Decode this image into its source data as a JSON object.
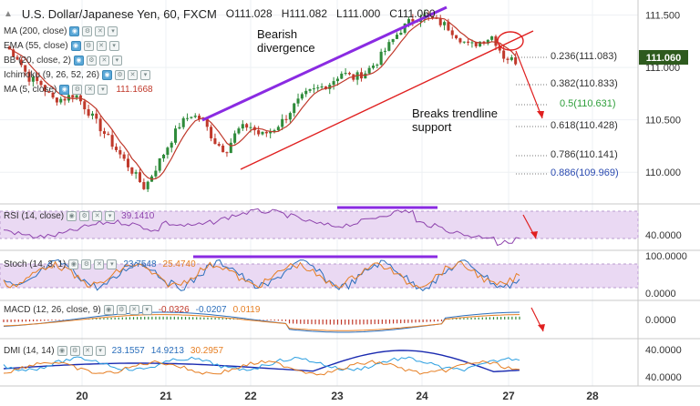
{
  "header": {
    "symbol": "U.S. Dollar/Japanese Yen, 60, FXCM",
    "open": "O111.028",
    "high": "H111.082",
    "low": "L111.000",
    "close": "C111.060"
  },
  "overlays": [
    {
      "label": "MA (200, close)"
    },
    {
      "label": "EMA (55, close)"
    },
    {
      "label": "BB (20, close, 2)"
    },
    {
      "label": "Ichimoku (9, 26, 52, 26)"
    },
    {
      "label": "MA (5, close)",
      "value": "111.1668"
    }
  ],
  "price_axis": {
    "ticks": [
      "111.500",
      "111.000",
      "110.500",
      "110.000"
    ],
    "current": "111.060"
  },
  "annotations": {
    "bearish": "Bearish\ndivergence",
    "breaks": "Breaks trendline\nsupport"
  },
  "fib_levels": [
    {
      "label": "0.236(111.083)",
      "color": "#333333"
    },
    {
      "label": "0.382(110.833)",
      "color": "#333333"
    },
    {
      "label": "0.5(110.631)",
      "color": "#2e9e3a"
    },
    {
      "label": "0.618(110.428)",
      "color": "#333333"
    },
    {
      "label": "0.786(110.141)",
      "color": "#333333"
    },
    {
      "label": "0.886(109.969)",
      "color": "#2a4ab0"
    }
  ],
  "rsi": {
    "label": "RSI (14, close)",
    "value": "39.1410",
    "tick": "40.0000"
  },
  "stoch": {
    "label": "Stoch (14, 3, 1)",
    "k": "23.7548",
    "d": "25.4740",
    "ticks": [
      "100.0000",
      "0.0000"
    ]
  },
  "macd": {
    "label": "MACD (12, 26, close, 9)",
    "hist": "-0.0326",
    "macd": "-0.0207",
    "signal": "0.0119",
    "tick": "0.0000"
  },
  "dmi": {
    "label": "DMI (14, 14)",
    "adx": "23.1557",
    "plus": "14.9213",
    "minus": "30.2957",
    "ticks": [
      "40.0000",
      "40.0000"
    ]
  },
  "time_axis": [
    "20",
    "21",
    "22",
    "23",
    "24",
    "27",
    "28"
  ],
  "colors": {
    "up": "#2e8b3a",
    "down": "#c0392b",
    "ma": "#c0392b",
    "purple": "#8a2be2",
    "trend": "#e02020",
    "panel_fill": "#ead9f3"
  },
  "chart_data": {
    "type": "candlestick",
    "time_labels": [
      "20",
      "21",
      "22",
      "23",
      "24",
      "27",
      "28"
    ],
    "y_range": [
      109.75,
      111.6
    ],
    "approx_closes": [
      111.2,
      111.1,
      110.9,
      110.85,
      110.7,
      110.7,
      110.75,
      110.6,
      110.45,
      110.3,
      110.15,
      110.0,
      109.85,
      110.05,
      110.25,
      110.45,
      110.55,
      110.5,
      110.3,
      110.2,
      110.4,
      110.45,
      110.35,
      110.4,
      110.5,
      110.65,
      110.75,
      110.8,
      110.85,
      110.95,
      110.9,
      110.95,
      111.05,
      111.2,
      111.35,
      111.45,
      111.5,
      111.45,
      111.4,
      111.3,
      111.2,
      111.25,
      111.3,
      111.1,
      111.06
    ]
  }
}
